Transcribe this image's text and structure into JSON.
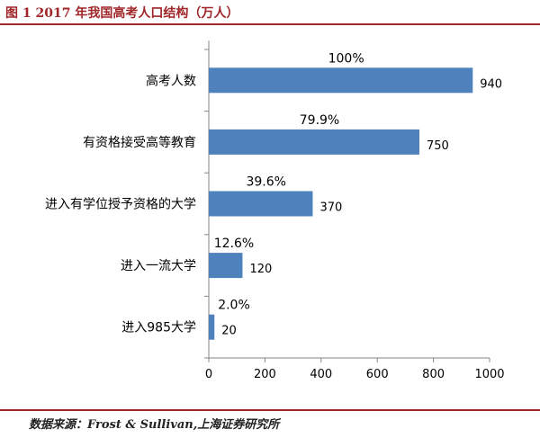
{
  "title": "图 1 2017 年我国高考人口结构（万人）",
  "source": "数据来源：Frost & Sullivan,上海证券研究所",
  "colors": {
    "bar": "#4f81bd",
    "accent": "#a0262a",
    "axis": "#868686"
  },
  "chart_data": {
    "type": "bar",
    "orientation": "horizontal",
    "categories": [
      "高考人数",
      "有资格接受高等教育",
      "进入有学位授予资格的大学",
      "进入一流大学",
      "进入985大学"
    ],
    "values": [
      940,
      750,
      370,
      120,
      20
    ],
    "value_labels": [
      "940",
      "750",
      "370",
      "120",
      "20"
    ],
    "percent_labels": [
      "100%",
      "79.9%",
      "39.6%",
      "12.6%",
      "2.0%"
    ],
    "xlim": [
      0,
      1000
    ],
    "xticks": [
      "0",
      "200",
      "400",
      "600",
      "800",
      "1000"
    ],
    "grid": false
  }
}
